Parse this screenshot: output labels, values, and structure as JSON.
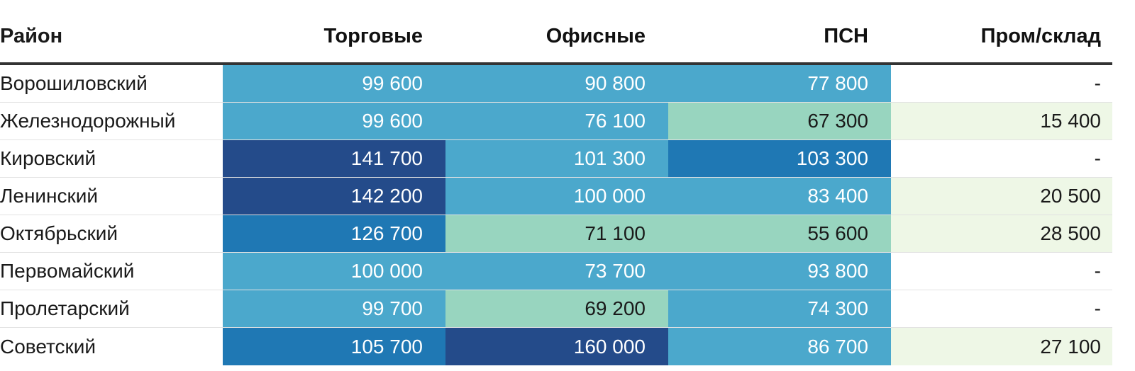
{
  "chart_data": {
    "type": "table",
    "columns": [
      "Район",
      "Торговые",
      "Офисные",
      "ПСН",
      "Пром/склад"
    ],
    "rows": [
      {
        "district": "Ворошиловский",
        "values": [
          "99 600",
          "90 800",
          "77 800",
          "-"
        ]
      },
      {
        "district": "Железнодорожный",
        "values": [
          "99 600",
          "76 100",
          "67 300",
          "15 400"
        ]
      },
      {
        "district": "Кировский",
        "values": [
          "141 700",
          "101 300",
          "103 300",
          "-"
        ]
      },
      {
        "district": "Ленинский",
        "values": [
          "142 200",
          "100 000",
          "83 400",
          "20 500"
        ]
      },
      {
        "district": "Октябрьский",
        "values": [
          "126 700",
          "71 100",
          "55 600",
          "28 500"
        ]
      },
      {
        "district": "Первомайский",
        "values": [
          "100 000",
          "73 700",
          "93 800",
          "-"
        ]
      },
      {
        "district": "Пролетарский",
        "values": [
          "99 700",
          "69 200",
          "74 300",
          "-"
        ]
      },
      {
        "district": "Советский",
        "values": [
          "105 700",
          "160 000",
          "86 700",
          "27 100"
        ]
      }
    ],
    "color_scale": {
      "dark_navy": "#244b8a",
      "blue": "#1f78b4",
      "light_blue": "#4ba8cc",
      "mint": "#98d5bf",
      "pale_green": "#eef7e6",
      "empty": "#ffffff"
    }
  }
}
